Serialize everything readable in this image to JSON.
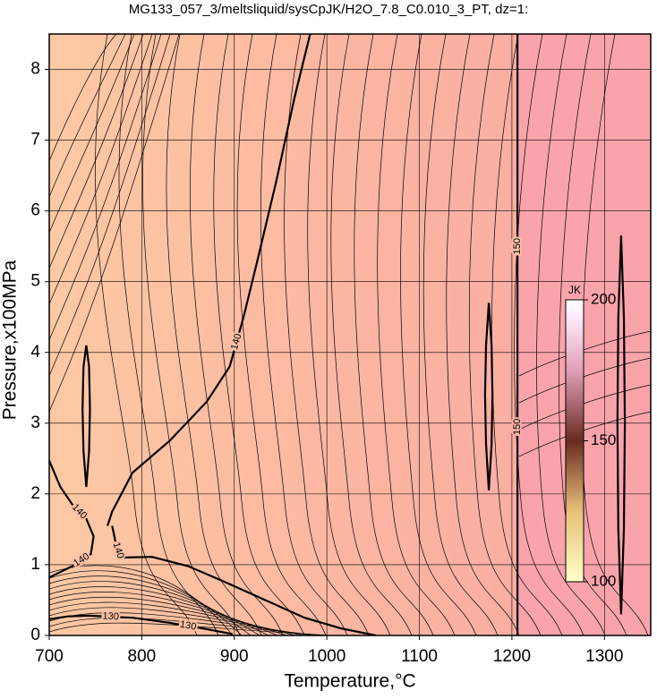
{
  "chart_data": {
    "type": "contour",
    "title": "MG133_057_3/meltsliquid/sysCpJK/H2O_7.8_C0.010_3_PT, dz=1:",
    "x_label": "Temperature,°C",
    "y_label": "Pressure,x100MPa",
    "xlim": [
      700,
      1350
    ],
    "ylim": [
      0,
      8.5
    ],
    "xticks": [
      700,
      800,
      900,
      1000,
      1100,
      1200,
      1300
    ],
    "yticks": [
      0,
      1,
      2,
      3,
      4,
      5,
      6,
      7,
      8
    ],
    "grid": true,
    "contours": [
      {
        "level": 140,
        "x": [
          763,
          768,
          790,
          830,
          870,
          895,
          910,
          925,
          945,
          965,
          982
        ],
        "y": [
          1.55,
          1.75,
          2.3,
          2.75,
          3.3,
          3.8,
          4.5,
          5.3,
          6.4,
          7.6,
          8.5
        ]
      },
      {
        "level": 140,
        "x": [
          700,
          712,
          725,
          740,
          748,
          745,
          725,
          700
        ],
        "y": [
          2.47,
          2.1,
          1.85,
          1.65,
          1.4,
          1.15,
          0.98,
          0.82
        ]
      },
      {
        "level": 140,
        "x": [
          768,
          772,
          777,
          811,
          850,
          889,
          930,
          976,
          1015,
          1053
        ],
        "y": [
          1.55,
          1.3,
          1.1,
          1.11,
          0.98,
          0.76,
          0.52,
          0.25,
          0.1,
          0
        ]
      },
      {
        "level": 130,
        "x": [
          700,
          720,
          743,
          790,
          830,
          870,
          898
        ],
        "y": [
          0.23,
          0.27,
          0.28,
          0.25,
          0.18,
          0.09,
          0.02
        ]
      },
      {
        "level": 150,
        "x": [
          1206,
          1206
        ],
        "y": [
          0,
          8.5
        ]
      },
      {
        "level": 150,
        "x": [
          740,
          743,
          744,
          743,
          740,
          737,
          736,
          737,
          740
        ],
        "y": [
          2.1,
          2.6,
          3.2,
          3.8,
          4.1,
          3.8,
          3.2,
          2.6,
          2.1
        ]
      },
      {
        "level": 150,
        "x": [
          1175,
          1178,
          1179,
          1178,
          1175,
          1172,
          1171,
          1172,
          1175
        ],
        "y": [
          2.05,
          2.7,
          3.4,
          4.1,
          4.7,
          4.1,
          3.4,
          2.7,
          2.05
        ]
      },
      {
        "level": 150,
        "x": [
          1318,
          1321,
          1322,
          1321,
          1318,
          1315,
          1314,
          1315,
          1318
        ],
        "y": [
          0.3,
          1.5,
          3.0,
          4.5,
          5.65,
          4.5,
          3.0,
          1.5,
          0.3
        ]
      }
    ],
    "colorbar": {
      "title": "JK",
      "lim": [
        100,
        200
      ],
      "ticks": [
        100,
        150,
        200
      ]
    }
  }
}
